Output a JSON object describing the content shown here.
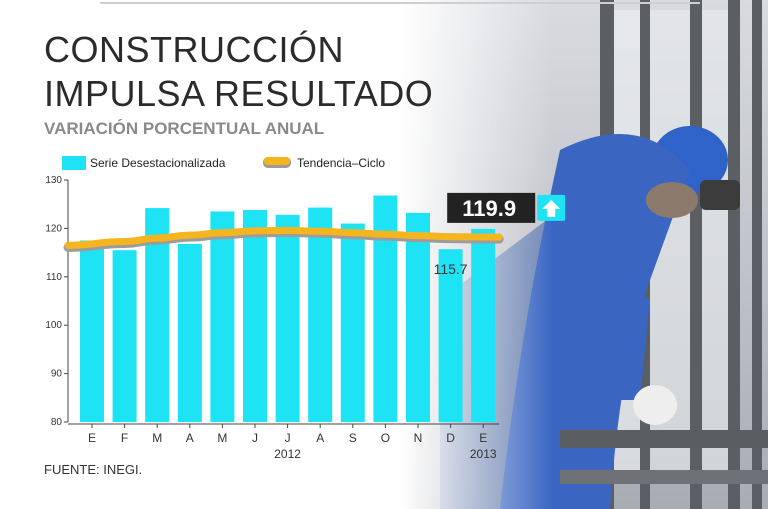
{
  "title": "CONSTRUCCIÓN IMPULSA RESULTADO",
  "subtitle": "VARIACIÓN PORCENTUAL ANUAL",
  "source": "FUENTE: INEGI.",
  "colors": {
    "bar": "#1ee3f5",
    "trend": "#f5b51f",
    "trend_edge": "#9c9c9c",
    "callout_bg": "#222222",
    "arrow_bg": "#1ee3f5"
  },
  "chart_data": {
    "type": "bar",
    "title": "VARIACIÓN PORCENTUAL ANUAL",
    "xlabel": "",
    "ylabel": "",
    "ylim": [
      80,
      130
    ],
    "yticks": [
      80,
      90,
      100,
      110,
      120,
      130
    ],
    "categories": [
      "E",
      "F",
      "M",
      "A",
      "M",
      "J",
      "J",
      "A",
      "S",
      "O",
      "N",
      "D",
      "E"
    ],
    "year_labels": [
      {
        "label": "2012",
        "index": 6
      },
      {
        "label": "2013",
        "index": 12
      }
    ],
    "series": [
      {
        "name": "Serie Desestacionalizada",
        "kind": "bar",
        "values": [
          117.5,
          115.5,
          124.2,
          116.8,
          123.5,
          123.8,
          122.8,
          124.3,
          121.0,
          126.8,
          123.2,
          115.7,
          119.9
        ]
      },
      {
        "name": "Tendencia–Ciclo",
        "kind": "line",
        "values": [
          116.5,
          117.3,
          118.0,
          118.6,
          119.1,
          119.5,
          119.6,
          119.4,
          119.1,
          118.8,
          118.5,
          118.3,
          118.2
        ]
      }
    ],
    "annotations": [
      {
        "text": "115.7",
        "index": 11,
        "kind": "min"
      },
      {
        "text": "119.9",
        "index": 12,
        "kind": "highlight",
        "arrow": "up"
      }
    ],
    "legend": [
      "Serie Desestacionalizada",
      "Tendencia–Ciclo"
    ],
    "legend_position": "top"
  }
}
